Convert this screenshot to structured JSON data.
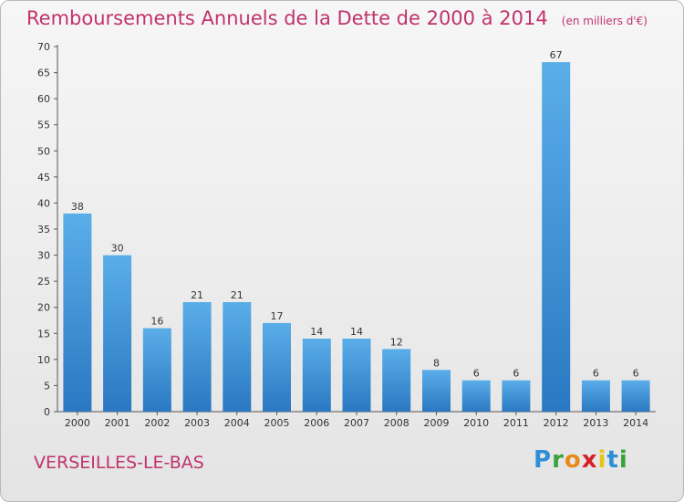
{
  "chart_data": {
    "type": "bar",
    "title": "Remboursements Annuels de la Dette de 2000 à 2014",
    "subtitle": "(en milliers d'€)",
    "xlabel": "",
    "ylabel": "",
    "categories": [
      "2000",
      "2001",
      "2002",
      "2003",
      "2004",
      "2005",
      "2006",
      "2007",
      "2008",
      "2009",
      "2010",
      "2011",
      "2012",
      "2013",
      "2014"
    ],
    "values": [
      38,
      30,
      16,
      21,
      21,
      17,
      14,
      14,
      12,
      8,
      6,
      6,
      67,
      6,
      6
    ],
    "data_labels": [
      "38",
      "30",
      "16",
      "21",
      "21",
      "17",
      "14",
      "14",
      "12",
      "8",
      "6",
      "6",
      "67",
      "6",
      "6"
    ],
    "ylim": [
      0,
      70
    ],
    "yticks": [
      0,
      5,
      10,
      15,
      20,
      25,
      30,
      35,
      40,
      45,
      50,
      55,
      60,
      65,
      70
    ],
    "ytick_labels": [
      "0",
      "5",
      "10",
      "15",
      "20",
      "25",
      "30",
      "35",
      "40",
      "45",
      "50",
      "55",
      "60",
      "65",
      "70"
    ],
    "grid": false,
    "legend": "none",
    "bar_color": "#3a93d6",
    "title_color": "#c0336b"
  },
  "footer": {
    "commune": "VERSEILLES-LE-BAS",
    "logo": [
      "P",
      "r",
      "o",
      "x",
      "i",
      "t",
      "i"
    ]
  }
}
